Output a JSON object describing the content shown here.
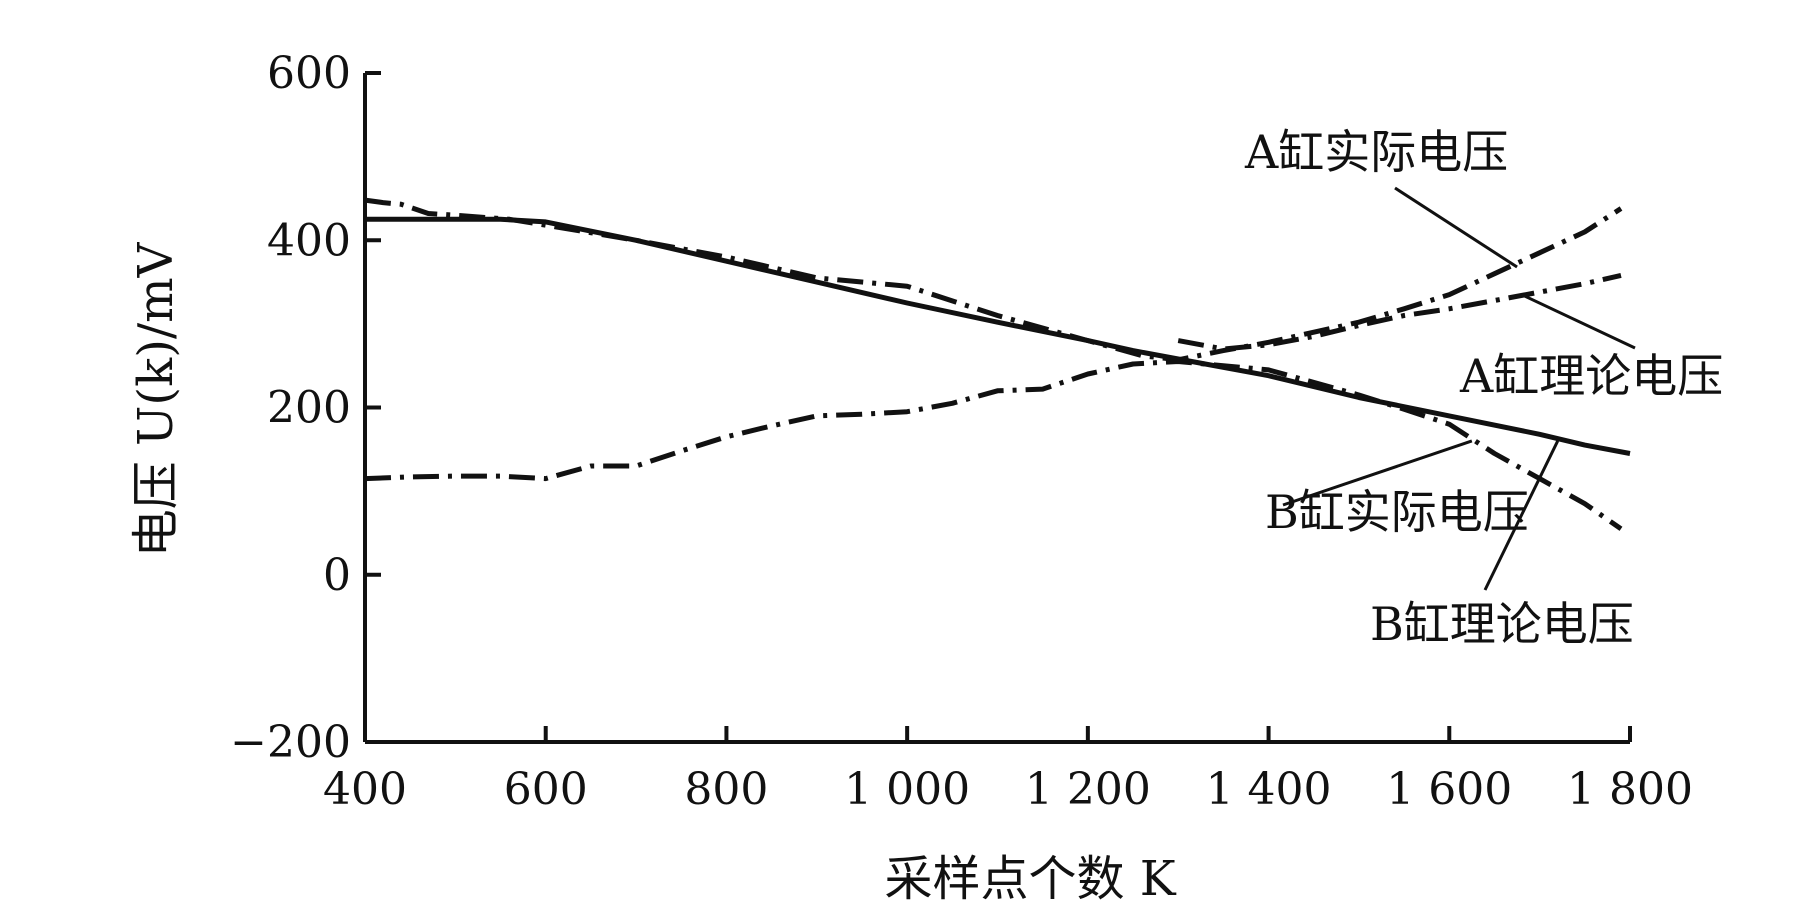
{
  "chart_data": {
    "type": "line",
    "title": "",
    "xlabel": "采样点个数 K",
    "ylabel": "电压 U(k)/mV",
    "xlim": [
      400,
      1800
    ],
    "ylim": [
      -200,
      600
    ],
    "x_ticks": [
      400,
      600,
      800,
      1000,
      1200,
      1400,
      1600,
      1800
    ],
    "x_tick_labels": [
      "400",
      "600",
      "800",
      "1 000",
      "1 200",
      "1 400",
      "1 600",
      "1 800"
    ],
    "y_ticks": [
      600,
      400,
      200,
      0,
      -200
    ],
    "y_tick_labels": [
      "600",
      "400",
      "200",
      "0",
      "−200"
    ],
    "grid": false,
    "legend": "callouts",
    "series": [
      {
        "name": "A缸实际电压",
        "style": "dashdot",
        "x": [
          400,
          420,
          440,
          470,
          500,
          560,
          600,
          700,
          800,
          900,
          1000,
          1100,
          1200,
          1260,
          1300,
          1350,
          1400,
          1450,
          1500,
          1550,
          1600,
          1650,
          1700,
          1750,
          1790
        ],
        "y": [
          448,
          445,
          443,
          432,
          430,
          425,
          418,
          400,
          380,
          355,
          345,
          310,
          280,
          262,
          257,
          268,
          278,
          290,
          302,
          318,
          335,
          360,
          385,
          410,
          438
        ]
      },
      {
        "name": "A缸理论电压",
        "style": "solid",
        "x": [
          400,
          450,
          500,
          550,
          600,
          700,
          800,
          900,
          1000,
          1100,
          1200,
          1250,
          1300,
          1400,
          1500,
          1600,
          1700,
          1750,
          1800
        ],
        "y": [
          425,
          425,
          425,
          425,
          422,
          400,
          375,
          350,
          325,
          302,
          280,
          268,
          258,
          238,
          212,
          190,
          168,
          155,
          145
        ]
      },
      {
        "name": "B缸实际电压",
        "style": "dashdot",
        "x": [
          400,
          450,
          500,
          550,
          600,
          650,
          700,
          750,
          800,
          850,
          900,
          950,
          1000,
          1050,
          1100,
          1150,
          1200,
          1250,
          1300,
          1350,
          1400,
          1450,
          1500,
          1550,
          1600,
          1650,
          1700,
          1750,
          1790
        ],
        "y": [
          115,
          117,
          118,
          118,
          115,
          130,
          130,
          148,
          165,
          178,
          190,
          192,
          195,
          205,
          220,
          222,
          240,
          252,
          255,
          250,
          245,
          230,
          215,
          198,
          180,
          145,
          115,
          85,
          55
        ]
      },
      {
        "name": "B缸理论电压",
        "style": "dashdot",
        "x": [
          1300,
          1350,
          1400,
          1450,
          1500,
          1550,
          1600,
          1650,
          1700,
          1750,
          1790
        ],
        "y": [
          280,
          270,
          275,
          285,
          298,
          310,
          318,
          328,
          338,
          348,
          358
        ]
      }
    ],
    "callouts": [
      {
        "text": "A缸实际电压",
        "for": "A缸实际电压",
        "anchor": [
          1675,
          368
        ]
      },
      {
        "text": "A缸理论电压",
        "for": "A缸理论电压",
        "anchor": [
          1680,
          335
        ]
      },
      {
        "text": "B缸实际电压",
        "for": "B缸实际电压",
        "anchor": [
          1625,
          160
        ]
      },
      {
        "text": "B缸理论电压",
        "for": "B缸理论电压",
        "anchor": [
          1720,
          160
        ]
      }
    ]
  }
}
